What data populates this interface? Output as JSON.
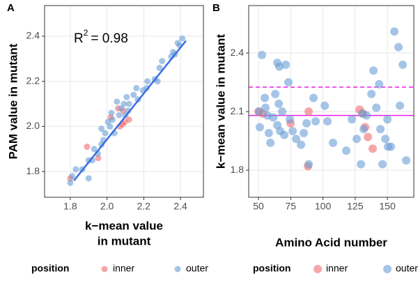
{
  "chart_data": [
    {
      "type": "scatter",
      "panel_label": "A",
      "xlabel": [
        "k−mean value",
        "in mutant"
      ],
      "ylabel": "PAM value in mutant",
      "xlim": [
        1.66,
        2.525
      ],
      "ylim": [
        1.686,
        2.536
      ],
      "xticks": [
        1.8,
        {
          "value": 2,
          "label": "2.0"
        },
        2.2,
        2.4
      ],
      "yticks": [
        1.8,
        {
          "value": 2,
          "label": "2.0"
        },
        2.2,
        2.4
      ],
      "grid": true,
      "legend": "bottom",
      "legend_title": "position",
      "annotation": [
        "R",
        "2",
        "= 0.98"
      ],
      "fit_line": {
        "color": "#3a6ee0",
        "x": [
          1.82,
          2.43
        ],
        "y": [
          1.76,
          2.38
        ]
      },
      "series": [
        {
          "name": "inner",
          "color": "#ee6b6e",
          "x": [
            1.8,
            1.891,
            1.952,
            2.02,
            2.06,
            2.088,
            2.096,
            2.085,
            2.12,
            2.07
          ],
          "y": [
            1.77,
            1.91,
            1.86,
            2.04,
            2.08,
            2.07,
            2.02,
            2.01,
            2.03,
            2.0
          ]
        },
        {
          "name": "outer",
          "color": "#6a9fd6",
          "x": [
            1.8,
            1.81,
            1.83,
            1.865,
            1.9,
            1.9,
            1.92,
            1.93,
            1.95,
            1.97,
            1.98,
            1.97,
            1.99,
            2.005,
            2.016,
            2.024,
            2.03,
            2.04,
            2.054,
            2.066,
            2.077,
            2.092,
            2.1,
            2.107,
            2.115,
            2.12,
            2.145,
            2.16,
            2.168,
            2.195,
            2.215,
            2.22,
            2.26,
            2.275,
            2.286,
            2.3,
            2.35,
            2.36,
            2.385,
            2.395,
            2.41,
            2.37
          ],
          "y": [
            1.75,
            1.78,
            1.81,
            1.81,
            1.77,
            1.85,
            1.85,
            1.9,
            1.88,
            1.92,
            1.94,
            1.99,
            1.97,
            2.02,
            2.0,
            2.06,
            2.03,
            1.97,
            2.11,
            2.05,
            2.08,
            2.1,
            2.05,
            2.13,
            2.07,
            2.1,
            2.14,
            2.17,
            2.12,
            2.16,
            2.17,
            2.2,
            2.21,
            2.2,
            2.26,
            2.29,
            2.31,
            2.33,
            2.37,
            2.36,
            2.39,
            2.32
          ]
        }
      ]
    },
    {
      "type": "scatter",
      "panel_label": "B",
      "xlabel": [
        "Amino Acid number"
      ],
      "ylabel": "k−mean value in mutant",
      "xlim": [
        42.4,
        170.5
      ],
      "ylim": [
        1.661,
        2.643
      ],
      "xticks": [
        50,
        75,
        100,
        125,
        150
      ],
      "yticks": [
        1.8,
        2.1,
        2.4
      ],
      "grid": true,
      "legend": "bottom",
      "legend_title": "position",
      "hlines": [
        {
          "y": 2.08,
          "style": "solid",
          "color": "#e81ee8"
        },
        {
          "y": 2.225,
          "style": "dashed",
          "color": "#e81ee8"
        }
      ],
      "series": [
        {
          "name": "inner",
          "color": "#ee6b6e",
          "x": [
            50,
            53.2,
            74.9,
            88.9,
            88.4,
            128.4,
            131.1,
            132.7,
            134.9,
            138.6
          ],
          "y": [
            2.1,
            2.09,
            2.04,
            2.1,
            1.82,
            2.11,
            2.09,
            2.02,
            1.97,
            1.91
          ]
        },
        {
          "name": "outer",
          "color": "#6a9fd6",
          "x": [
            52.7,
            50.5,
            51,
            54.9,
            55.4,
            57,
            58,
            59.2,
            61.4,
            63,
            64.6,
            66.2,
            65.7,
            64.6,
            66.8,
            68.4,
            70,
            71.1,
            73.2,
            74.3,
            76.5,
            79.2,
            83,
            85.1,
            87.3,
            88.9,
            92.7,
            94.3,
            101.4,
            103.5,
            107.8,
            118.1,
            122.4,
            126.2,
            129.5,
            130.5,
            131.6,
            133.8,
            137.6,
            139.2,
            141.4,
            143.6,
            144.6,
            146.2,
            148.4,
            152.7,
            155.4,
            158.6,
            159.7,
            161.9,
            164.6,
            150,
            150.5
          ],
          "y": [
            2.39,
            2.1,
            2.02,
            2.17,
            2.12,
            2.08,
            1.99,
            1.94,
            2.07,
            2.19,
            2.35,
            2.33,
            2.14,
            2.03,
            2.0,
            2.1,
            1.98,
            2.34,
            2.25,
            2.06,
            2.0,
            1.96,
            1.93,
            1.99,
            2.04,
            1.83,
            2.17,
            2.05,
            2.13,
            2.05,
            1.94,
            1.9,
            2.06,
            1.96,
            1.83,
            2.09,
            2.01,
            2.08,
            2.19,
            2.31,
            2.12,
            2.24,
            2.01,
            1.83,
            1.96,
            1.92,
            2.51,
            2.43,
            2.13,
            2.34,
            1.85,
            2.06,
            1.92
          ]
        }
      ]
    }
  ]
}
